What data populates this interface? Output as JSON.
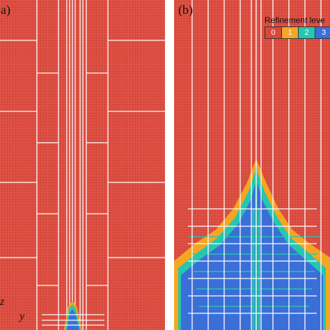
{
  "panels": [
    {
      "id": "a",
      "label": "a)"
    },
    {
      "id": "b",
      "label": "(b)"
    }
  ],
  "legend": {
    "title": "Refinement leve",
    "levels": [
      {
        "value": "0",
        "color": "#d9483b"
      },
      {
        "value": "1",
        "color": "#f5a623"
      },
      {
        "value": "2",
        "color": "#26c6b0"
      },
      {
        "value": "3",
        "color": "#3b6fd8"
      }
    ]
  },
  "axes": {
    "z": "z",
    "y": "y"
  },
  "colors": {
    "level0": "#d9483b",
    "level1": "#f5a623",
    "level2": "#26c6b0",
    "level3": "#3b6fd8",
    "block_line": "#ffffff"
  }
}
